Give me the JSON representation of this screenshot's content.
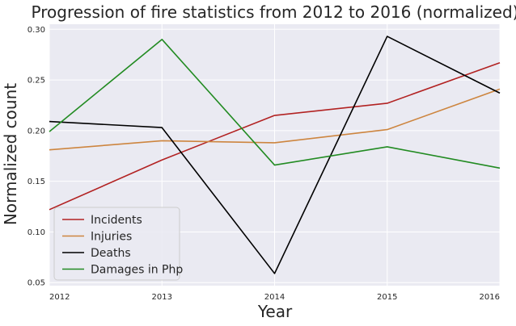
{
  "chart_data": {
    "type": "line",
    "title": "Progression of fire statistics from 2012 to 2016 (normalized)",
    "xlabel": "Year",
    "ylabel": "Normalized count",
    "x": [
      2012,
      2013,
      2014,
      2015,
      2016
    ],
    "x_tick_labels": [
      "2012",
      "2013",
      "2014",
      "2015",
      "2016"
    ],
    "xlim": [
      2012,
      2016
    ],
    "ylim": [
      0.047,
      0.305
    ],
    "y_ticks": [
      0.05,
      0.1,
      0.15,
      0.2,
      0.25,
      0.3
    ],
    "y_tick_labels": [
      "0.05",
      "0.10",
      "0.15",
      "0.20",
      "0.25",
      "0.30"
    ],
    "grid": true,
    "legend_position": "lower-left",
    "background_color": "#eaeaf2",
    "grid_color": "#ffffff",
    "series": [
      {
        "name": "Incidents",
        "color": "#b22222",
        "values": [
          0.122,
          0.171,
          0.215,
          0.227,
          0.267
        ]
      },
      {
        "name": "Injuries",
        "color": "#cd853f",
        "values": [
          0.181,
          0.19,
          0.188,
          0.201,
          0.241
        ]
      },
      {
        "name": "Deaths",
        "color": "#000000",
        "values": [
          0.209,
          0.203,
          0.059,
          0.293,
          0.237
        ]
      },
      {
        "name": "Damages in Php",
        "color": "#228b22",
        "values": [
          0.199,
          0.29,
          0.166,
          0.184,
          0.163
        ]
      }
    ]
  }
}
